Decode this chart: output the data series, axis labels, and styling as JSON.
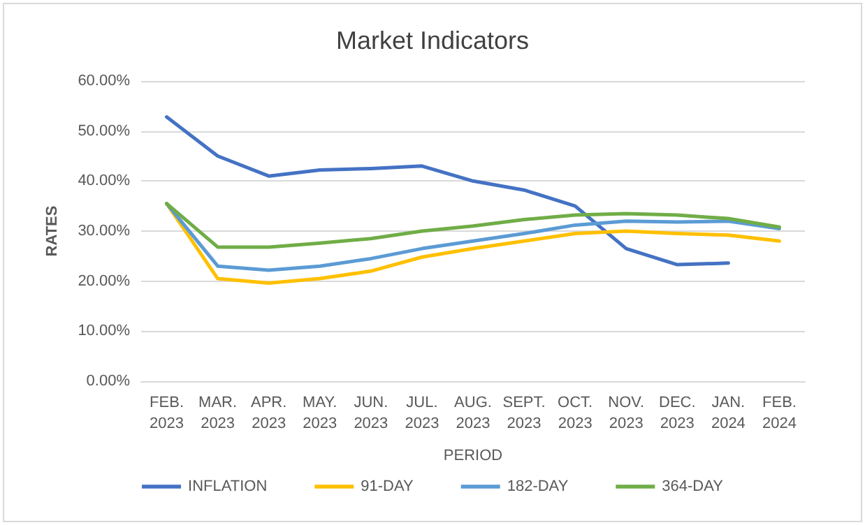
{
  "chart_data": {
    "type": "line",
    "title": "Market Indicators",
    "xlabel": "PERIOD",
    "ylabel": "RATES",
    "categories": [
      "FEB. 2023",
      "MAR. 2023",
      "APR. 2023",
      "MAY. 2023",
      "JUN. 2023",
      "JUL. 2023",
      "AUG. 2023",
      "SEPT. 2023",
      "OCT. 2023",
      "NOV. 2023",
      "DEC. 2023",
      "JAN. 2024",
      "FEB. 2024"
    ],
    "series": [
      {
        "name": "INFLATION",
        "color": "#4472c4",
        "values": [
          52.8,
          45,
          41,
          42.2,
          42.5,
          43,
          40,
          38.2,
          35,
          26.5,
          23.3,
          23.6,
          null
        ]
      },
      {
        "name": "91-DAY",
        "color": "#ffc000",
        "values": [
          35.5,
          20.5,
          19.6,
          20.5,
          22,
          24.8,
          26.5,
          28,
          29.5,
          30,
          29.5,
          29.2,
          28
        ]
      },
      {
        "name": "182-DAY",
        "color": "#5b9bd5",
        "values": [
          35.5,
          23,
          22.2,
          23,
          24.5,
          26.5,
          28,
          29.5,
          31.2,
          32,
          31.8,
          32,
          30.5
        ]
      },
      {
        "name": "364-DAY",
        "color": "#70ad47",
        "values": [
          35.5,
          26.8,
          26.8,
          27.6,
          28.5,
          30,
          31,
          32.3,
          33.2,
          33.5,
          33.2,
          32.5,
          30.8
        ]
      }
    ],
    "ylim": [
      0,
      60
    ],
    "yticks": [
      {
        "value": 0,
        "label": "0.00%"
      },
      {
        "value": 10,
        "label": "10.00%"
      },
      {
        "value": 20,
        "label": "20.00%"
      },
      {
        "value": 30,
        "label": "30.00%"
      },
      {
        "value": 40,
        "label": "40.00%"
      },
      {
        "value": 50,
        "label": "50.00%"
      },
      {
        "value": 60,
        "label": "60.00%"
      }
    ],
    "grid": "y",
    "legend": "bottom",
    "marker": "none",
    "line_style": "solid"
  }
}
